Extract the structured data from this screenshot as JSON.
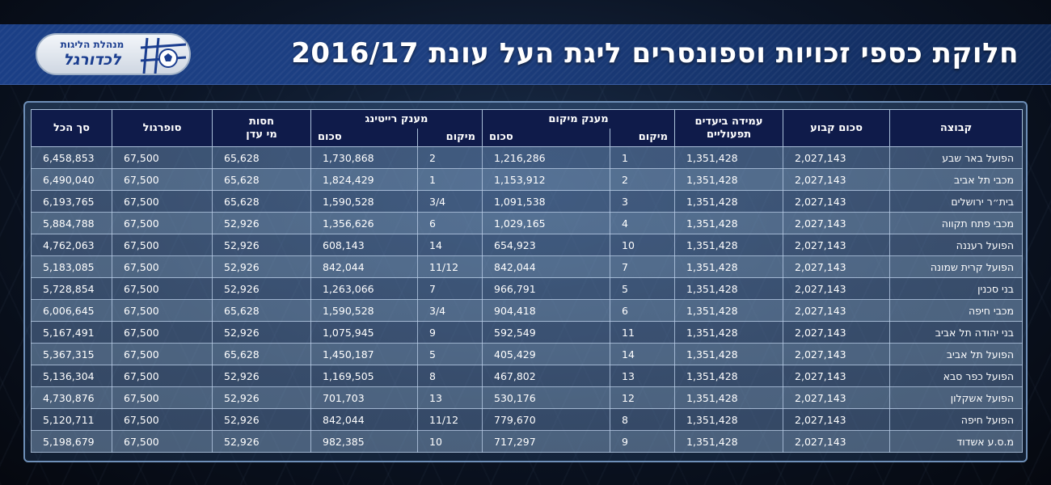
{
  "title": "חלוקת כספי זכויות וספונסרים ליגת העל עונת 2016/17",
  "logo": {
    "line1": "מנהלת הליגות",
    "line2": "לכדורגל"
  },
  "headers": {
    "team": "קבוצה",
    "fixed": "סכום קבוע",
    "attendance_line1": "עמידה ביעדים",
    "attendance_line2": "תפעוליים",
    "position_group": "מענק מיקום",
    "position_rank": "מיקום",
    "position_amount": "סכום",
    "rating_group": "מענק רייטינג",
    "rating_rank": "מיקום",
    "rating_amount": "סכום",
    "hosting_line1": "חסות",
    "hosting_line2": "מי עדן",
    "supergol": "סופרגול",
    "total": "סך הכל"
  },
  "rows": [
    {
      "team": "הפועל באר שבע",
      "fixed": "2,027,143",
      "attendance": "1,351,428",
      "pos_rank": "1",
      "pos_amount": "1,216,286",
      "rating_rank": "2",
      "rating_amount": "1,730,868",
      "hosting": "65,628",
      "supergol": "67,500",
      "total": "6,458,853"
    },
    {
      "team": "מכבי תל אביב",
      "fixed": "2,027,143",
      "attendance": "1,351,428",
      "pos_rank": "2",
      "pos_amount": "1,153,912",
      "rating_rank": "1",
      "rating_amount": "1,824,429",
      "hosting": "65,628",
      "supergol": "67,500",
      "total": "6,490,040"
    },
    {
      "team": "בית״ר ירושלים",
      "fixed": "2,027,143",
      "attendance": "1,351,428",
      "pos_rank": "3",
      "pos_amount": "1,091,538",
      "rating_rank": "3/4",
      "rating_amount": "1,590,528",
      "hosting": "65,628",
      "supergol": "67,500",
      "total": "6,193,765"
    },
    {
      "team": "מכבי פתח תקווה",
      "fixed": "2,027,143",
      "attendance": "1,351,428",
      "pos_rank": "4",
      "pos_amount": "1,029,165",
      "rating_rank": "6",
      "rating_amount": "1,356,626",
      "hosting": "52,926",
      "supergol": "67,500",
      "total": "5,884,788"
    },
    {
      "team": "הפועל רעננה",
      "fixed": "2,027,143",
      "attendance": "1,351,428",
      "pos_rank": "10",
      "pos_amount": "654,923",
      "rating_rank": "14",
      "rating_amount": "608,143",
      "hosting": "52,926",
      "supergol": "67,500",
      "total": "4,762,063"
    },
    {
      "team": "הפועל קרית שמונה",
      "fixed": "2,027,143",
      "attendance": "1,351,428",
      "pos_rank": "7",
      "pos_amount": "842,044",
      "rating_rank": "11/12",
      "rating_amount": "842,044",
      "hosting": "52,926",
      "supergol": "67,500",
      "total": "5,183,085"
    },
    {
      "team": "בני סכנין",
      "fixed": "2,027,143",
      "attendance": "1,351,428",
      "pos_rank": "5",
      "pos_amount": "966,791",
      "rating_rank": "7",
      "rating_amount": "1,263,066",
      "hosting": "52,926",
      "supergol": "67,500",
      "total": "5,728,854"
    },
    {
      "team": "מכבי חיפה",
      "fixed": "2,027,143",
      "attendance": "1,351,428",
      "pos_rank": "6",
      "pos_amount": "904,418",
      "rating_rank": "3/4",
      "rating_amount": "1,590,528",
      "hosting": "65,628",
      "supergol": "67,500",
      "total": "6,006,645"
    },
    {
      "team": "בני יהודה תל אביב",
      "fixed": "2,027,143",
      "attendance": "1,351,428",
      "pos_rank": "11",
      "pos_amount": "592,549",
      "rating_rank": "9",
      "rating_amount": "1,075,945",
      "hosting": "52,926",
      "supergol": "67,500",
      "total": "5,167,491"
    },
    {
      "team": "הפועל תל אביב",
      "fixed": "2,027,143",
      "attendance": "1,351,428",
      "pos_rank": "14",
      "pos_amount": "405,429",
      "rating_rank": "5",
      "rating_amount": "1,450,187",
      "hosting": "65,628",
      "supergol": "67,500",
      "total": "5,367,315"
    },
    {
      "team": "הפועל כפר סבא",
      "fixed": "2,027,143",
      "attendance": "1,351,428",
      "pos_rank": "13",
      "pos_amount": "467,802",
      "rating_rank": "8",
      "rating_amount": "1,169,505",
      "hosting": "52,926",
      "supergol": "67,500",
      "total": "5,136,304"
    },
    {
      "team": "הפועל אשקלון",
      "fixed": "2,027,143",
      "attendance": "1,351,428",
      "pos_rank": "12",
      "pos_amount": "530,176",
      "rating_rank": "13",
      "rating_amount": "701,703",
      "hosting": "52,926",
      "supergol": "67,500",
      "total": "4,730,876"
    },
    {
      "team": "הפועל חיפה",
      "fixed": "2,027,143",
      "attendance": "1,351,428",
      "pos_rank": "8",
      "pos_amount": "779,670",
      "rating_rank": "11/12",
      "rating_amount": "842,044",
      "hosting": "52,926",
      "supergol": "67,500",
      "total": "5,120,711"
    },
    {
      "team": "מ.ס.ע אשדוד",
      "fixed": "2,027,143",
      "attendance": "1,351,428",
      "pos_rank": "9",
      "pos_amount": "717,297",
      "rating_rank": "10",
      "rating_amount": "982,385",
      "hosting": "52,926",
      "supergol": "67,500",
      "total": "5,198,679"
    }
  ]
}
